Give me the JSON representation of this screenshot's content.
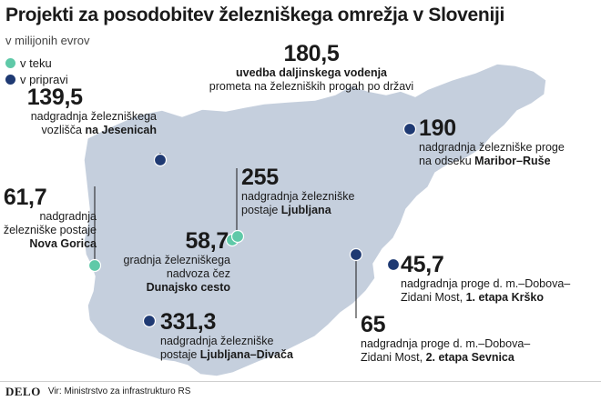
{
  "title": "Projekti za posodobitev železniškega omrežja v Sloveniji",
  "subtitle": "v milijonih evrov",
  "legend": [
    {
      "label": "v teku",
      "color": "#5fc9a8"
    },
    {
      "label": "v pripravi",
      "color": "#1f3a73"
    }
  ],
  "colors": {
    "map_fill": "#c5cfdd",
    "active": "#5fc9a8",
    "planned": "#1f3a73"
  },
  "projects": [
    {
      "id": "remote",
      "value": "180,5",
      "line1": "uvedba daljinskega vodenja",
      "line2": "prometa na železniških progah po državi",
      "status": "v pripravi"
    },
    {
      "id": "jesenice",
      "value": "139,5",
      "line1": "nadgradnja železniškega",
      "line2_a": "vozlišča ",
      "line2_b": "na Jesenicah",
      "status": "v pripravi"
    },
    {
      "id": "nova_gorica",
      "value": "61,7",
      "line1": "nadgradnja",
      "line2": "železniške postaje",
      "line3": "Nova Gorica",
      "status": "v teku"
    },
    {
      "id": "ljubljana",
      "value": "255",
      "line1": "nadgradnja železniške",
      "line2_a": "postaje ",
      "line2_b": "Ljubljana",
      "status": "v pripravi"
    },
    {
      "id": "dunajska",
      "value": "58,7",
      "line1": "gradnja železniškega",
      "line2": "nadvoza čez",
      "line3": "Dunajsko cesto",
      "status": "v teku"
    },
    {
      "id": "divaca",
      "value": "331,3",
      "line1": "nadgradnja železniške",
      "line2_a": "postaje ",
      "line2_b": "Ljubljana–Divača",
      "status": "v pripravi"
    },
    {
      "id": "maribor",
      "value": "190",
      "line1": "nadgradnja železniške proge",
      "line2_a": "na odseku ",
      "line2_b": "Maribor–Ruše",
      "status": "v pripravi"
    },
    {
      "id": "krsko",
      "value": "45,7",
      "line1": "nadgradnja proge d. m.–Dobova–",
      "line2_a": "Zidani Most, ",
      "line2_b": "1. etapa Krško",
      "status": "v pripravi"
    },
    {
      "id": "sevnica",
      "value": "65",
      "line1": "nadgradnja proge d. m.–Dobova–",
      "line2_a": "Zidani Most, ",
      "line2_b": "2. etapa Sevnica",
      "status": "v pripravi"
    }
  ],
  "footer": {
    "brand": "DELO",
    "source": "Vir: Ministrstvo za infrastrukturo RS"
  }
}
